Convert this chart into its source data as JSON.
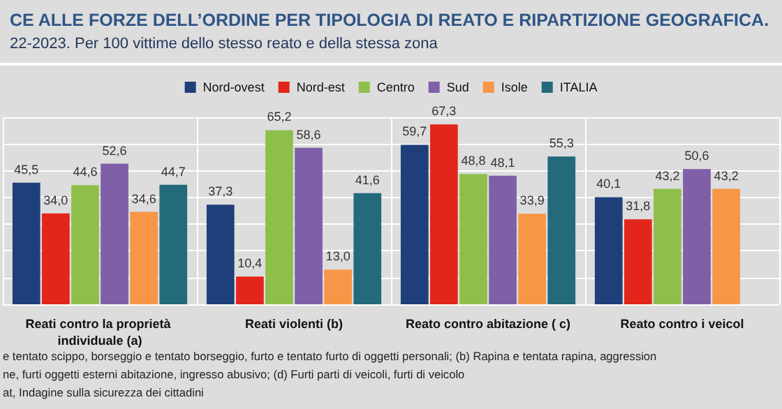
{
  "chart_data": {
    "type": "bar",
    "title": "CE ALLE FORZE DELL’ORDINE PER TIPOLOGIA DI REATO E RIPARTIZIONE GEOGRAFICA.",
    "subtitle": "22-2023. Per 100 vittime dello stesso reato e della stessa zona",
    "categories": [
      "Reati contro la proprietà individuale (a)",
      "Reati violenti (b)",
      "Reato contro abitazione ( c)",
      "Reato contro i veicol"
    ],
    "series": [
      {
        "name": "Nord-ovest",
        "color": "#1f3f7a",
        "values": [
          45.5,
          37.3,
          59.7,
          40.1
        ],
        "value_labels": [
          "45,5",
          "37,3",
          "59,7",
          "40,1"
        ]
      },
      {
        "name": "Nord-est",
        "color": "#e3261b",
        "values": [
          34.0,
          10.4,
          67.3,
          31.8
        ],
        "value_labels": [
          "34,0",
          "10,4",
          "67,3",
          "31,8"
        ]
      },
      {
        "name": "Centro",
        "color": "#8fbf4b",
        "values": [
          44.6,
          65.2,
          48.8,
          43.2
        ],
        "value_labels": [
          "44,6",
          "65,2",
          "48,8",
          "43,2"
        ]
      },
      {
        "name": "Sud",
        "color": "#7f5fa8",
        "values": [
          52.6,
          58.6,
          48.1,
          50.6
        ],
        "value_labels": [
          "52,6",
          "58,6",
          "48,1",
          "50,6"
        ]
      },
      {
        "name": "Isole",
        "color": "#f79646",
        "values": [
          34.6,
          13.0,
          33.9,
          43.2
        ],
        "value_labels": [
          "34,6",
          "13,0",
          "33,9",
          "43,2"
        ]
      },
      {
        "name": "ITALIA",
        "color": "#236a7a",
        "values": [
          44.7,
          41.6,
          55.3,
          null
        ],
        "value_labels": [
          "44,7",
          "41,6",
          "55,3",
          null
        ]
      }
    ],
    "grid": "y",
    "legend": "top",
    "tick_labels": "x",
    "annotations": [
      "e tentato scippo, borseggio e tentato borseggio, furto e tentato furto di oggetti personali; (b) Rapina e tentata rapina, aggression",
      "ne, furti oggetti esterni abitazione, ingresso abusivo; (d) Furti parti di veicoli, furti di veicolo",
      "at, Indagine sulla sicurezza dei cittadini"
    ]
  }
}
